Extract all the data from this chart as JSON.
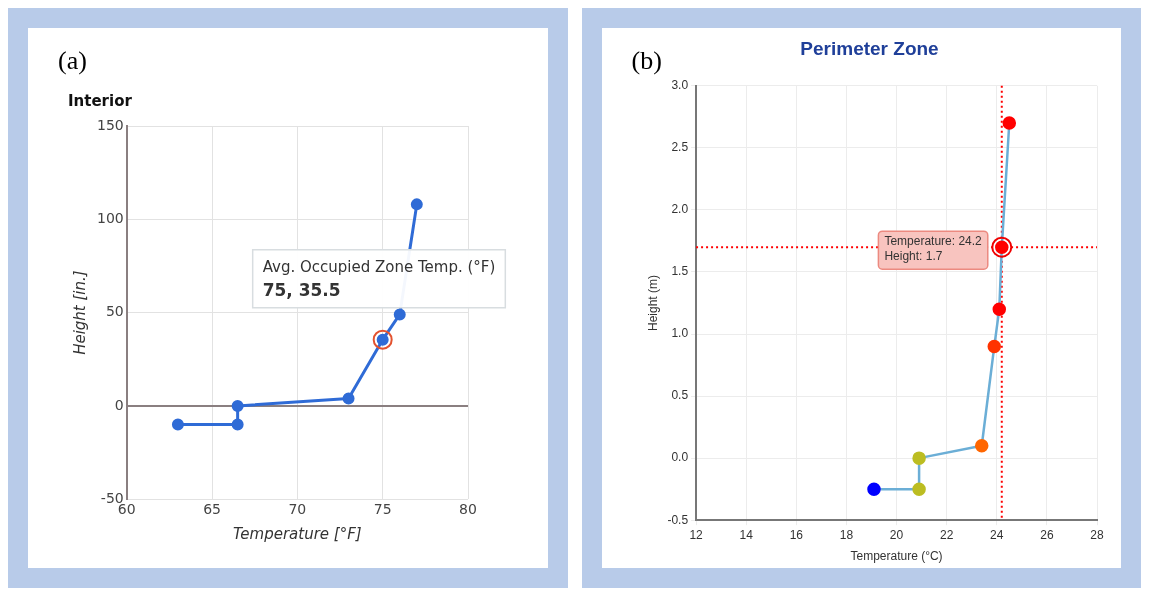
{
  "chart_data": [
    {
      "type": "line",
      "title": "Interior",
      "xlabel": "Temperature [°F]",
      "ylabel": "Height [in.]",
      "series": [
        {
          "color": "#2f6bd6",
          "x": [
            63,
            66.5,
            66.5,
            73,
            75,
            76,
            77
          ],
          "values": [
            -10,
            -10,
            0,
            4,
            35.5,
            49,
            108
          ]
        }
      ],
      "xlim": [
        60,
        80
      ],
      "xticks": [
        60,
        65,
        70,
        75,
        80
      ],
      "ylim": [
        -50,
        150
      ],
      "yticks": [
        -50,
        0,
        50,
        100,
        150
      ],
      "grid": true,
      "legend": false,
      "marker": "circle",
      "line_style": "solid",
      "ref_lines": [
        {
          "axis": "y",
          "value": 0,
          "color": "#8a7f80",
          "line_style": "solid"
        }
      ],
      "annotations": [
        "(a)",
        {
          "text": "Avg. Occupied Zone Temp. (°F)\n75, 35.5",
          "x": 75,
          "y": 35.5
        }
      ]
    },
    {
      "type": "line",
      "title": "Perimeter Zone",
      "xlabel": "Temperature (°C)",
      "ylabel": "Height (m)",
      "series": [
        {
          "color": "#6baed6",
          "x": [
            19.1,
            20.9,
            20.9,
            23.4,
            23.9,
            24.1,
            24.2,
            24.5
          ],
          "values": [
            -0.25,
            -0.25,
            0,
            0.1,
            0.9,
            1.2,
            1.7,
            2.7
          ],
          "colors": [
            "#0000ff",
            "#bcbd22",
            "#bcbd22",
            "#ff6600",
            "#ff3300",
            "#ff0000",
            "#ff0000",
            "#ff0000"
          ]
        }
      ],
      "xlim": [
        12,
        28
      ],
      "xticks": [
        12,
        14,
        16,
        18,
        20,
        22,
        24,
        26,
        28
      ],
      "ylim": [
        -0.5,
        3
      ],
      "yticks": [
        {
          "value": -0.5,
          "label": "-0.5"
        },
        {
          "value": 0,
          "label": "0.0"
        },
        {
          "value": 0.5,
          "label": "0.5"
        },
        {
          "value": 1,
          "label": "1.0"
        },
        {
          "value": 1.5,
          "label": "1.5"
        },
        {
          "value": 2,
          "label": "2.0"
        },
        {
          "value": 2.5,
          "label": "2.5"
        },
        {
          "value": 3,
          "label": "3.0"
        }
      ],
      "grid": true,
      "legend": false,
      "marker": "circle",
      "line_style": "solid",
      "ref_lines": [
        {
          "axis": "x",
          "value": 24.2,
          "color": "#ff0000",
          "line_style": "dotted"
        },
        {
          "axis": "y",
          "value": 1.7,
          "color": "#ff0000",
          "line_style": "dotted"
        }
      ],
      "annotations": [
        "(b)",
        {
          "text": "Temperature: 24.2\nHeight: 1.7",
          "x": 24.2,
          "y": 1.7
        }
      ]
    }
  ]
}
